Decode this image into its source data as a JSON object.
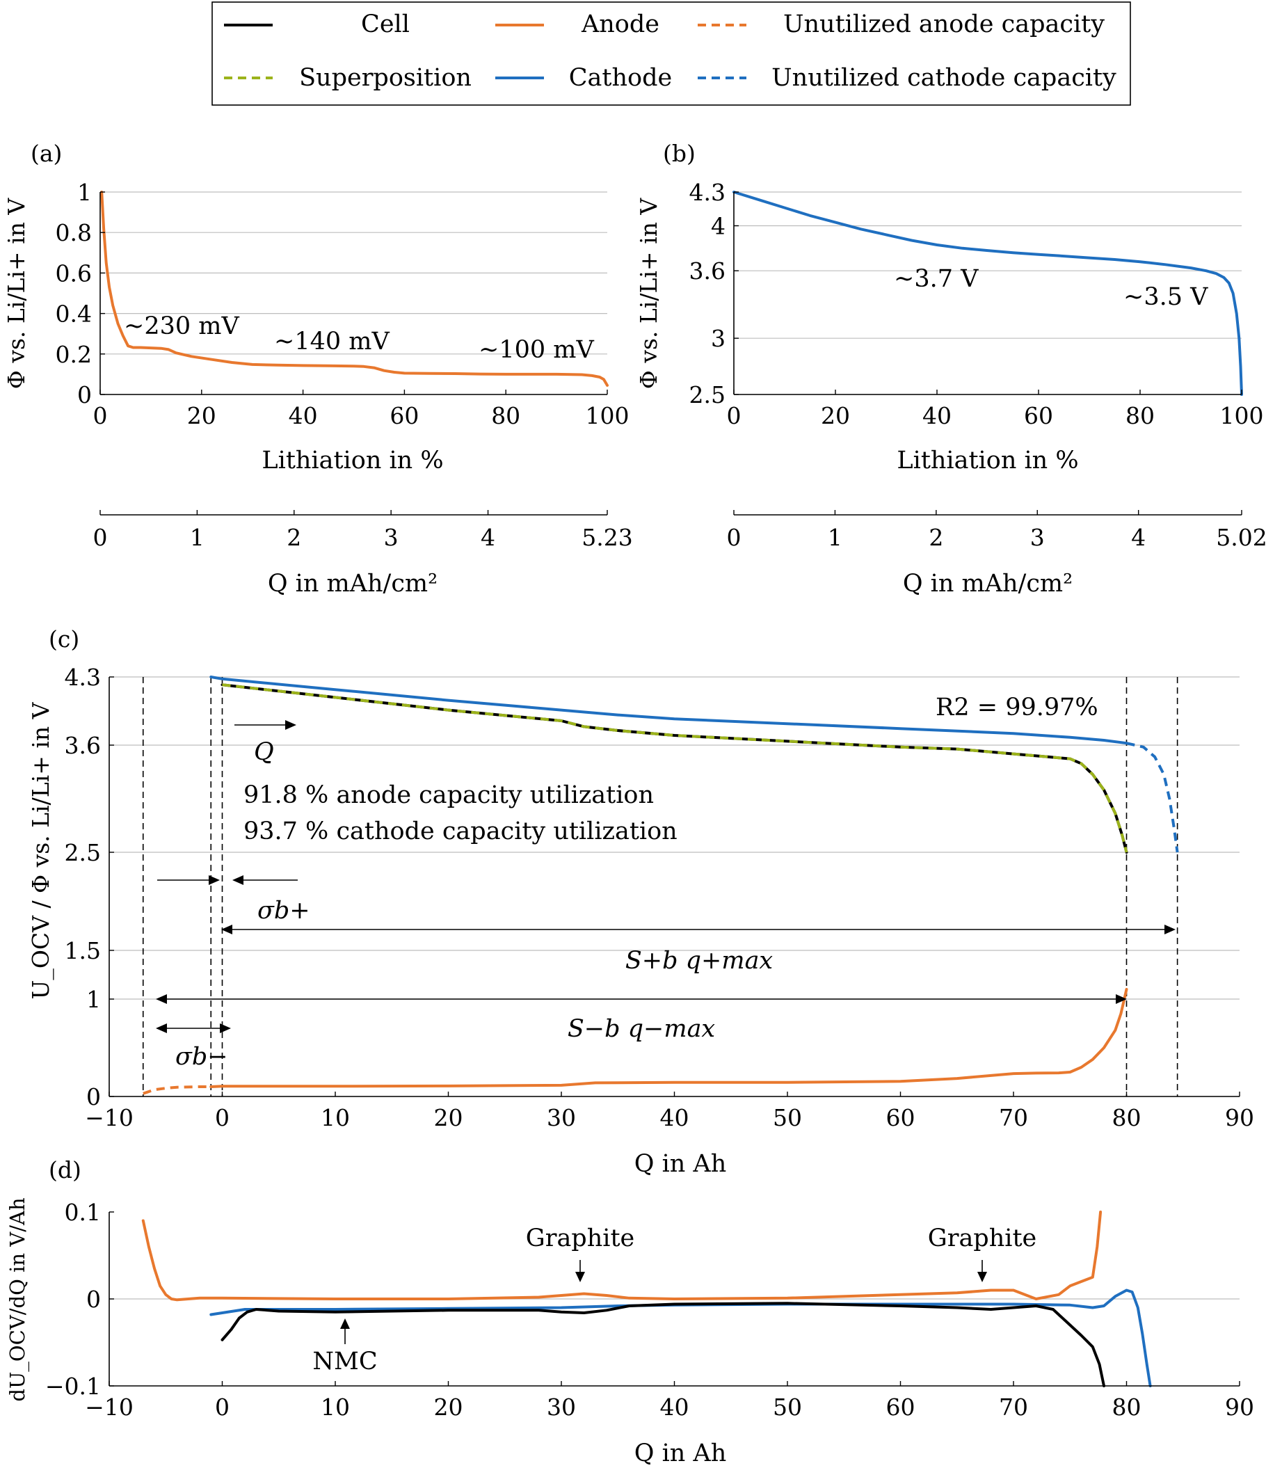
{
  "colors": {
    "cell": "#000000",
    "superposition": "#9cb31b",
    "anode": "#e8782e",
    "cathode": "#1f6fc0",
    "grid": "#bdbdbd"
  },
  "legend": {
    "entries": [
      {
        "label": "Cell",
        "color": "#000000",
        "dashed": false
      },
      {
        "label": "Anode",
        "color": "#e8782e",
        "dashed": false
      },
      {
        "label": "Unutilized anode capacity",
        "color": "#e8782e",
        "dashed": true
      },
      {
        "label": "Superposition",
        "color": "#9cb31b",
        "dashed": true
      },
      {
        "label": "Cathode",
        "color": "#1f6fc0",
        "dashed": false
      },
      {
        "label": "Unutilized cathode capacity",
        "color": "#1f6fc0",
        "dashed": true
      }
    ]
  },
  "chart_data": [
    {
      "panel": "(a)",
      "type": "line",
      "ylabel": "Φ vs. Li/Li+ in V",
      "xlabel": "Lithiation in %",
      "xlim": [
        0,
        100
      ],
      "ylim": [
        0,
        1
      ],
      "xticks": [
        "0",
        "20",
        "40",
        "60",
        "80",
        "100"
      ],
      "yticks": [
        "0",
        "0.2",
        "0.4",
        "0.6",
        "0.8",
        "1"
      ],
      "grid": "horizontal",
      "secondary_axis": {
        "label": "Q in mAh/cm²",
        "max": 5.23,
        "ticks": [
          "0",
          "1",
          "2",
          "3",
          "4",
          "5.23"
        ]
      },
      "annotations": [
        {
          "text": "~230 mV",
          "x": 18,
          "y": 0.33
        },
        {
          "text": "~140 mV",
          "x": 43,
          "y": 0.25
        },
        {
          "text": "~100 mV",
          "x": 85,
          "y": 0.2
        }
      ],
      "series": [
        {
          "name": "Anode",
          "color": "#e8782e",
          "x": [
            0.3,
            0.7,
            1.2,
            1.8,
            2.5,
            3.5,
            4.5,
            5.5,
            6.5,
            8,
            10,
            12,
            13.5,
            15,
            18,
            22,
            26,
            30,
            35,
            40,
            45,
            50,
            52,
            54,
            56,
            58,
            60,
            65,
            70,
            75,
            80,
            85,
            90,
            95,
            97,
            98.5,
            99.3,
            100
          ],
          "y": [
            1.0,
            0.82,
            0.65,
            0.53,
            0.44,
            0.35,
            0.29,
            0.24,
            0.232,
            0.232,
            0.23,
            0.228,
            0.222,
            0.205,
            0.188,
            0.173,
            0.158,
            0.148,
            0.145,
            0.143,
            0.142,
            0.14,
            0.138,
            0.132,
            0.118,
            0.11,
            0.105,
            0.104,
            0.103,
            0.101,
            0.1,
            0.1,
            0.1,
            0.098,
            0.093,
            0.086,
            0.075,
            0.045
          ]
        }
      ]
    },
    {
      "panel": "(b)",
      "type": "line",
      "ylabel": "Φ vs. Li/Li+ in V",
      "xlabel": "Lithiation in %",
      "xlim": [
        0,
        100
      ],
      "ylim": [
        2.5,
        4.3
      ],
      "xticks": [
        "0",
        "20",
        "40",
        "60",
        "80",
        "100"
      ],
      "yticks": [
        "2.5",
        "3",
        "3.6",
        "4",
        "4.3"
      ],
      "grid": "horizontal",
      "secondary_axis": {
        "label": "Q in mAh/cm²",
        "max": 5.02,
        "ticks": [
          "0",
          "1",
          "2",
          "3",
          "4",
          "5.02"
        ]
      },
      "annotations": [
        {
          "text": "~3.7 V",
          "x": 40,
          "y": 3.55
        },
        {
          "text": "~3.5 V",
          "x": 91,
          "y": 3.37
        }
      ],
      "series": [
        {
          "name": "Cathode",
          "color": "#1f6fc0",
          "x": [
            0,
            5,
            10,
            15,
            20,
            25,
            30,
            35,
            40,
            45,
            50,
            55,
            60,
            65,
            70,
            75,
            80,
            85,
            90,
            93,
            95,
            96.5,
            97.5,
            98.3,
            99,
            99.5,
            99.8,
            100
          ],
          "y": [
            4.3,
            4.23,
            4.16,
            4.09,
            4.03,
            3.97,
            3.92,
            3.87,
            3.83,
            3.8,
            3.78,
            3.76,
            3.745,
            3.73,
            3.715,
            3.7,
            3.68,
            3.655,
            3.625,
            3.6,
            3.575,
            3.54,
            3.49,
            3.4,
            3.22,
            3.0,
            2.75,
            2.5
          ]
        }
      ]
    },
    {
      "panel": "(c)",
      "type": "line",
      "ylabel": "U_OCV / Φ vs. Li/Li+ in V",
      "xlabel": "Q in Ah",
      "xlim": [
        -10,
        90
      ],
      "yticks": [
        "0",
        "1",
        "1.5",
        "2.5",
        "3.6",
        "4.3"
      ],
      "xticks": [
        "−10",
        "0",
        "10",
        "20",
        "30",
        "40",
        "50",
        "60",
        "70",
        "80",
        "90"
      ],
      "grid": "horizontal",
      "annotations": [
        {
          "text": "R2 = 99.97%"
        },
        {
          "text": "Q"
        },
        {
          "text": "91.8 % anode capacity utilization"
        },
        {
          "text": "93.7 % cathode capacity utilization"
        },
        {
          "text": "σb+"
        },
        {
          "text": "S+b q+max"
        },
        {
          "text": "S−b q−max"
        },
        {
          "text": "σb−"
        }
      ],
      "markers_q": [
        -7,
        -1,
        0,
        80,
        84.5
      ],
      "series": [
        {
          "name": "Cathode",
          "color": "#1f6fc0",
          "x": [
            -1,
            0,
            10,
            20,
            30,
            35,
            40,
            50,
            60,
            70,
            75,
            78,
            80
          ],
          "y": [
            4.3,
            4.28,
            4.17,
            4.06,
            3.96,
            3.91,
            3.87,
            3.82,
            3.77,
            3.72,
            3.68,
            3.65,
            3.62
          ]
        },
        {
          "name": "Unutilized cathode capacity",
          "color": "#1f6fc0",
          "dashed": true,
          "x": [
            80,
            81.5,
            82.5,
            83.3,
            83.8,
            84.2,
            84.5
          ],
          "y": [
            3.62,
            3.58,
            3.48,
            3.3,
            3.05,
            2.75,
            2.5
          ]
        },
        {
          "name": "Cell",
          "color": "#000000",
          "x": [
            0,
            10,
            20,
            30,
            32,
            35,
            40,
            50,
            60,
            65,
            70,
            73,
            75,
            76,
            77,
            78,
            79,
            79.6,
            80
          ],
          "y": [
            4.22,
            4.09,
            3.96,
            3.85,
            3.79,
            3.75,
            3.7,
            3.64,
            3.58,
            3.56,
            3.51,
            3.48,
            3.46,
            3.41,
            3.3,
            3.14,
            2.9,
            2.68,
            2.5
          ]
        },
        {
          "name": "Superposition",
          "color": "#9cb31b",
          "dashed": true,
          "x": [
            0,
            10,
            20,
            30,
            32,
            35,
            40,
            50,
            60,
            65,
            70,
            73,
            75,
            76,
            77,
            78,
            79,
            79.6,
            80
          ],
          "y": [
            4.22,
            4.09,
            3.96,
            3.85,
            3.79,
            3.75,
            3.7,
            3.64,
            3.58,
            3.56,
            3.51,
            3.48,
            3.46,
            3.41,
            3.3,
            3.14,
            2.9,
            2.68,
            2.5
          ]
        },
        {
          "name": "Anode",
          "color": "#e8782e",
          "x": [
            -1,
            0,
            10,
            20,
            30,
            33,
            40,
            50,
            60,
            65,
            68,
            70,
            72,
            74,
            75,
            76,
            77,
            78,
            79,
            79.5,
            80
          ],
          "y": [
            0.1,
            0.105,
            0.105,
            0.108,
            0.115,
            0.14,
            0.145,
            0.145,
            0.155,
            0.185,
            0.215,
            0.235,
            0.24,
            0.242,
            0.25,
            0.3,
            0.38,
            0.5,
            0.68,
            0.85,
            1.1
          ]
        },
        {
          "name": "Unutilized anode capacity",
          "color": "#e8782e",
          "dashed": true,
          "x": [
            -7,
            -6,
            -5,
            -4,
            -2,
            -1
          ],
          "y": [
            0.03,
            0.07,
            0.085,
            0.095,
            0.1,
            0.1
          ]
        }
      ]
    },
    {
      "panel": "(d)",
      "type": "line",
      "ylabel": "dU_OCV/dQ in V/Ah",
      "xlabel": "Q in Ah",
      "xlim": [
        -10,
        90
      ],
      "ylim": [
        -0.1,
        0.1
      ],
      "yticks": [
        "−0.1",
        "0",
        "0.1"
      ],
      "xticks": [
        "−10",
        "0",
        "10",
        "20",
        "30",
        "40",
        "50",
        "60",
        "70",
        "80",
        "90"
      ],
      "grid": "horizontal",
      "annotations": [
        {
          "text": "Graphite",
          "x": 31,
          "y": 0.006
        },
        {
          "text": "Graphite",
          "x": 67,
          "y": 0.01
        },
        {
          "text": "NMC",
          "x": 10,
          "y": -0.016
        }
      ],
      "series": [
        {
          "name": "Anode",
          "color": "#e8782e",
          "x": [
            -7,
            -6.5,
            -6,
            -5.5,
            -5,
            -4.5,
            -4,
            -3,
            -2,
            0,
            10,
            20,
            28,
            30,
            32,
            34,
            36,
            40,
            50,
            60,
            65,
            68,
            70,
            72,
            74,
            75,
            76,
            77,
            77.4,
            77.7
          ],
          "y": [
            0.09,
            0.06,
            0.035,
            0.015,
            0.005,
            0.0,
            -0.001,
            0.0,
            0.001,
            0.001,
            0.0,
            0.0,
            0.002,
            0.004,
            0.006,
            0.004,
            0.001,
            0.0,
            0.001,
            0.005,
            0.007,
            0.01,
            0.01,
            0.0,
            0.005,
            0.015,
            0.02,
            0.025,
            0.06,
            0.1
          ]
        },
        {
          "name": "Cathode",
          "color": "#1f6fc0",
          "x": [
            -1,
            0,
            2,
            5,
            10,
            20,
            30,
            35,
            40,
            50,
            60,
            70,
            75,
            77,
            78,
            79,
            80,
            80.5,
            81,
            81.4,
            81.8,
            82.1
          ],
          "y": [
            -0.018,
            -0.016,
            -0.012,
            -0.012,
            -0.012,
            -0.011,
            -0.01,
            -0.008,
            -0.007,
            -0.006,
            -0.006,
            -0.006,
            -0.007,
            -0.01,
            -0.008,
            0.003,
            0.01,
            0.008,
            -0.01,
            -0.04,
            -0.075,
            -0.1
          ]
        },
        {
          "name": "Cell",
          "color": "#000000",
          "x": [
            0,
            0.8,
            1.5,
            2.2,
            3,
            5,
            10,
            20,
            28,
            30,
            32,
            34,
            36,
            40,
            50,
            60,
            65,
            68,
            70,
            72,
            73.5,
            75,
            76,
            77,
            77.6,
            78
          ],
          "y": [
            -0.047,
            -0.035,
            -0.022,
            -0.015,
            -0.012,
            -0.014,
            -0.015,
            -0.013,
            -0.013,
            -0.015,
            -0.016,
            -0.013,
            -0.008,
            -0.006,
            -0.005,
            -0.008,
            -0.01,
            -0.012,
            -0.01,
            -0.008,
            -0.012,
            -0.03,
            -0.042,
            -0.055,
            -0.075,
            -0.1
          ]
        }
      ]
    }
  ]
}
